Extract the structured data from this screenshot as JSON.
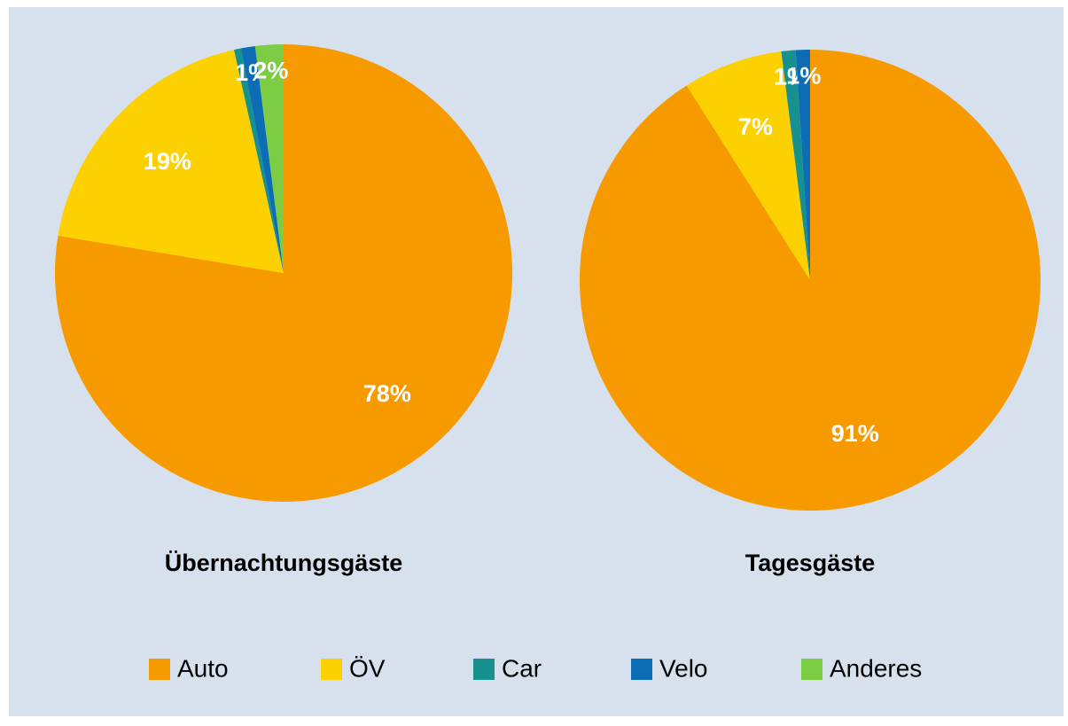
{
  "chart_data": [
    {
      "type": "pie",
      "title": "Übernachtungsgäste",
      "categories": [
        "Auto",
        "ÖV",
        "Car",
        "Velo",
        "Anderes"
      ],
      "values": [
        78,
        19,
        0.5,
        1,
        2
      ],
      "value_labels": [
        "78%",
        "19%",
        null,
        "1%",
        "2%"
      ],
      "colors": [
        "#f79a00",
        "#fdd000",
        "#16918f",
        "#0c6db5",
        "#7ccd44"
      ],
      "legend": "bottom"
    },
    {
      "type": "pie",
      "title": "Tagesgäste",
      "categories": [
        "Auto",
        "ÖV",
        "Car",
        "Velo",
        "Anderes"
      ],
      "values": [
        91,
        7,
        1,
        1,
        0
      ],
      "value_labels": [
        "91%",
        "7%",
        "1%",
        "1%",
        null
      ],
      "colors": [
        "#f79a00",
        "#fdd000",
        "#16918f",
        "#0c6db5",
        "#7ccd44"
      ],
      "legend": "bottom"
    }
  ]
}
